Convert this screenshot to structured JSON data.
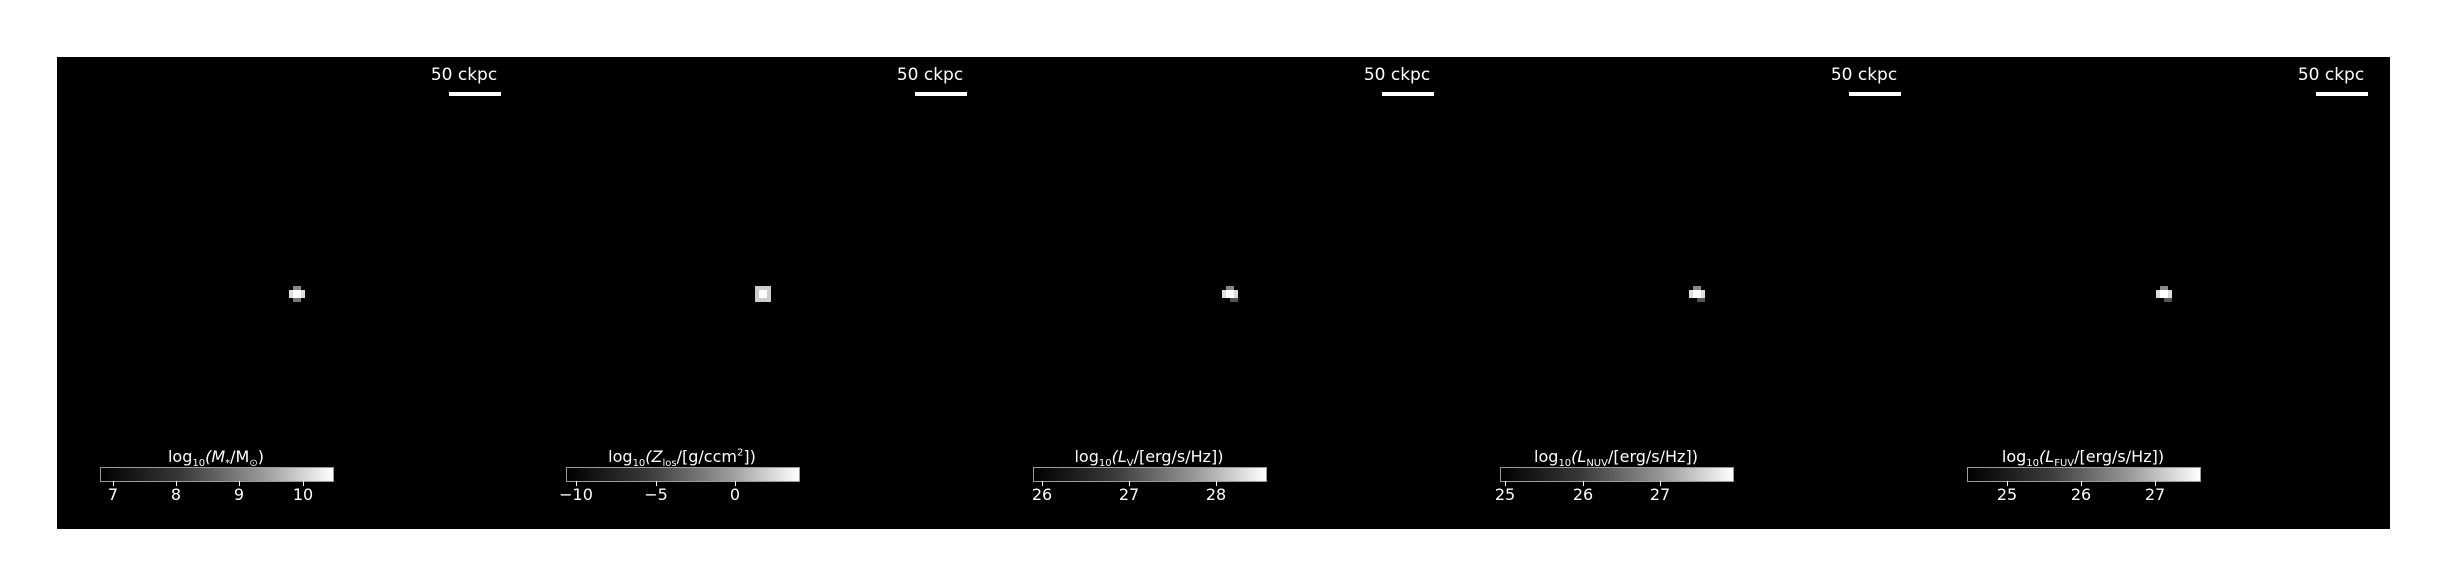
{
  "scale_bar_label": "50 ckpc",
  "panels": [
    {
      "id": "stellar-mass",
      "colorbar": {
        "prefix": "log",
        "sub": "10",
        "body": "(M",
        "body_sub": "*",
        "mid": "/M",
        "mid_sub": "⊙",
        "suffix": ")",
        "ticks": [
          "7",
          "8",
          "9",
          "10"
        ]
      }
    },
    {
      "id": "metallicity",
      "colorbar": {
        "prefix": "log",
        "sub": "10",
        "body": "(Z",
        "body_sub": "los",
        "mid": "/[g/ccm",
        "mid_sup": "2",
        "suffix": "])",
        "ticks": [
          "−10",
          "−5",
          "0"
        ]
      }
    },
    {
      "id": "lum-v",
      "colorbar": {
        "prefix": "log",
        "sub": "10",
        "body": "(L",
        "body_sub": "V",
        "mid": "/[erg/s/Hz])",
        "ticks": [
          "26",
          "27",
          "28"
        ]
      }
    },
    {
      "id": "lum-nuv",
      "colorbar": {
        "prefix": "log",
        "sub": "10",
        "body": "(L",
        "body_sub": "NUV",
        "mid": "/[erg/s/Hz])",
        "ticks": [
          "25",
          "26",
          "27"
        ]
      }
    },
    {
      "id": "lum-fuv",
      "colorbar": {
        "prefix": "log",
        "sub": "10",
        "body": "(L",
        "body_sub": "FUV",
        "mid": "/[erg/s/Hz])",
        "ticks": [
          "25",
          "26",
          "27"
        ]
      }
    }
  ]
}
